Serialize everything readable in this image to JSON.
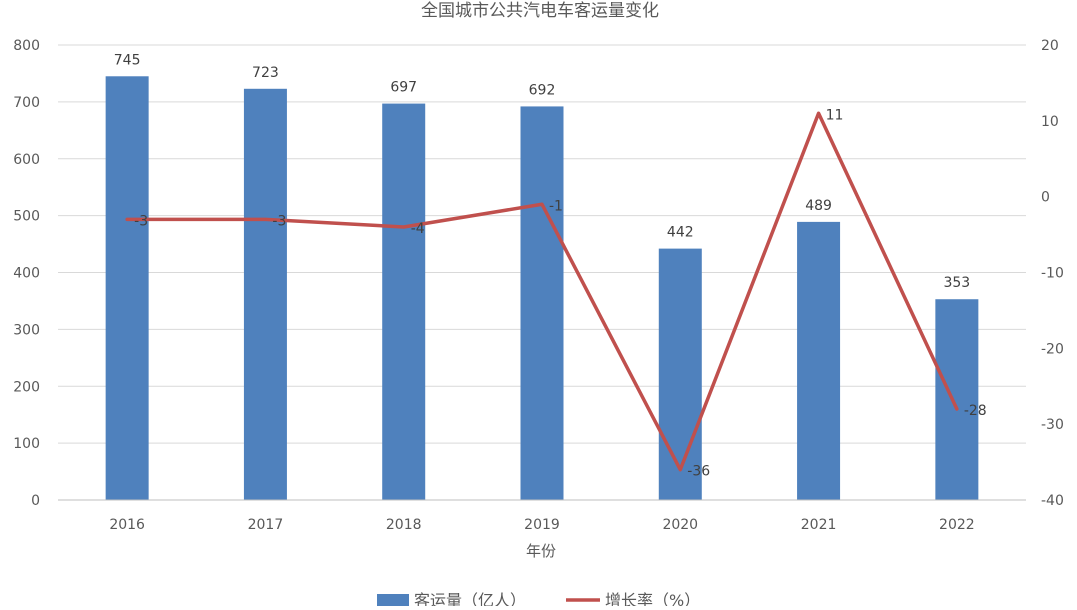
{
  "chart_data": {
    "type": "bar",
    "title": "全国城市公共汽电车客运量变化",
    "xlabel": "年份",
    "categories": [
      "2016",
      "2017",
      "2018",
      "2019",
      "2020",
      "2021",
      "2022"
    ],
    "series": [
      {
        "name": "客运量（亿人）",
        "type": "bar",
        "axis": "left",
        "color": "#4f81bd",
        "values": [
          745,
          723,
          697,
          692,
          442,
          489,
          353
        ]
      },
      {
        "name": "增长率（%）",
        "type": "line",
        "axis": "right",
        "color": "#c0504d",
        "values": [
          -3,
          -3,
          -4,
          -1,
          -36,
          11,
          -28
        ]
      }
    ],
    "ylim_left": [
      0,
      800
    ],
    "yticks_left": [
      "0",
      "100",
      "200",
      "300",
      "400",
      "500",
      "600",
      "700",
      "800"
    ],
    "ylim_right": [
      -40,
      20
    ],
    "yticks_right": [
      "-40",
      "-30",
      "-20",
      "-10",
      "0",
      "10",
      "20"
    ],
    "grid": true,
    "legend_position": "bottom"
  }
}
